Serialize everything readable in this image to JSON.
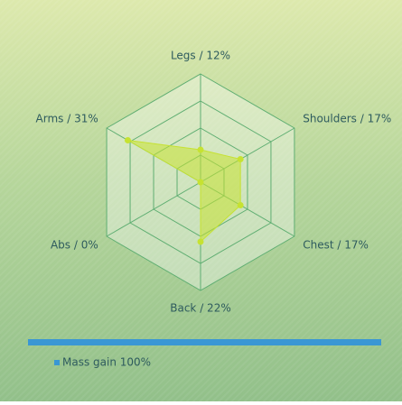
{
  "chart_data": {
    "type": "radar",
    "categories": [
      "Legs / 12%",
      "Shoulders / 17%",
      "Chest / 17%",
      "Back / 22%",
      "Abs / 0%",
      "Arms / 31%"
    ],
    "series": [
      {
        "name": "Mass gain 100%",
        "color": "#c6e232",
        "values": [
          12,
          17,
          17,
          22,
          0,
          31
        ]
      }
    ],
    "rlim": [
      0,
      40
    ],
    "rticks": [
      10,
      20,
      30,
      40
    ],
    "grid": true,
    "legend": "bottom-left"
  }
}
